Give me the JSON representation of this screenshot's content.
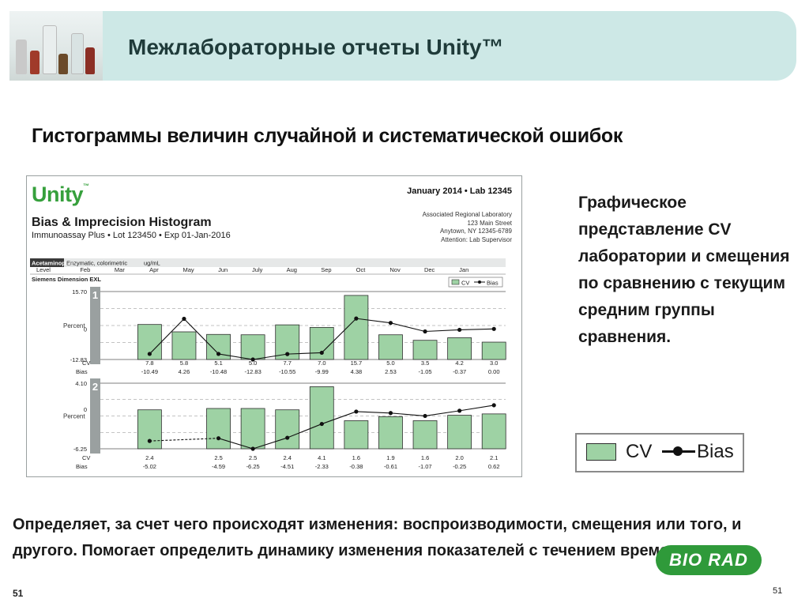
{
  "header": {
    "title": "Межлабораторные отчеты Unity™",
    "photo_icon": "lab-bottles-photo-icon"
  },
  "subtitle": "Гистограммы величин случайной и систематической ошибок",
  "report": {
    "logo": "Unity",
    "title": "Bias & Imprecision Histogram",
    "subtitle": "Immunoassay Plus • Lot 123450 • Exp 01-Jan-2016",
    "period": "January 2014 • Lab 12345",
    "address": [
      "Associated Regional Laboratory",
      "123 Main Street",
      "Anytown, NY 12345-6789",
      "Attention: Lab Supervisor"
    ],
    "analyte": "Acetaminophen",
    "method": "Enzymatic, colorimetric",
    "units": "ug/mL",
    "level_label": "Level",
    "instrument": "Siemens Dimension EXL",
    "percent_label": "Percent",
    "cv_label": "CV",
    "bias_label": "Bias"
  },
  "chart_data": {
    "type": "bar",
    "categories": [
      "Feb",
      "Mar",
      "Apr",
      "May",
      "Jun",
      "July",
      "Aug",
      "Sep",
      "Oct",
      "Nov",
      "Dec",
      "Jan"
    ],
    "legend": {
      "labels": [
        "CV",
        "Bias"
      ],
      "placement": "top-right"
    },
    "colors": {
      "cv_bar": "#9ed2a4",
      "bias_line": "#111111",
      "level_tab": "#9aa0a0"
    },
    "panels": [
      {
        "level": "1",
        "ylim": [
          -12.83,
          15.7
        ],
        "yticks": [
          "15.70",
          "0",
          "-12.83"
        ],
        "cv": [
          null,
          7.8,
          5.8,
          5.1,
          5.0,
          7.7,
          7.0,
          15.7,
          5.0,
          3.5,
          4.2,
          3.0
        ],
        "bias": [
          null,
          -10.49,
          4.26,
          -10.48,
          -12.83,
          -10.55,
          -9.99,
          4.38,
          2.53,
          -1.05,
          -0.37,
          0.0
        ],
        "cv_labels": [
          "",
          "7.8",
          "5.8",
          "5.1",
          "5.0",
          "7.7",
          "7.0",
          "15.7",
          "5.0",
          "3.5",
          "4.2",
          "3.0"
        ],
        "bias_labels": [
          "",
          "-10.49",
          "4.26",
          "-10.48",
          "-12.83",
          "-10.55",
          "-9.99",
          "4.38",
          "2.53",
          "-1.05",
          "-0.37",
          "0.00"
        ]
      },
      {
        "level": "2",
        "ylim": [
          -6.25,
          4.1
        ],
        "yticks": [
          "4.10",
          "0",
          "-6.25"
        ],
        "cv": [
          null,
          2.4,
          null,
          2.5,
          2.5,
          2.4,
          4.1,
          1.6,
          1.9,
          1.6,
          2.0,
          2.1
        ],
        "bias": [
          null,
          -5.02,
          null,
          -4.59,
          -6.25,
          -4.51,
          -2.33,
          -0.38,
          -0.61,
          -1.07,
          -0.25,
          0.62
        ],
        "cv_labels": [
          "",
          "2.4",
          "",
          "2.5",
          "2.5",
          "2.4",
          "4.1",
          "1.6",
          "1.9",
          "1.6",
          "2.0",
          "2.1"
        ],
        "bias_labels": [
          "",
          "-5.02",
          "",
          "-4.59",
          "-6.25",
          "-4.51",
          "-2.33",
          "-0.38",
          "-0.61",
          "-1.07",
          "-0.25",
          "0.62"
        ]
      }
    ]
  },
  "side_text": "Графическое представление CV лаборатории и смещения по сравнению с текущим средним группы сравнения.",
  "legend": {
    "cv": "CV",
    "bias": "Bias"
  },
  "bottom_text": "Определяет, за счет чего происходят изменения: воспроизводимости, смещения или того, и другого.  Помогает определить динамику изменения показателей с течением времени.",
  "brand": "BIO RAD",
  "page_number_left": "51",
  "page_number_right": "51"
}
